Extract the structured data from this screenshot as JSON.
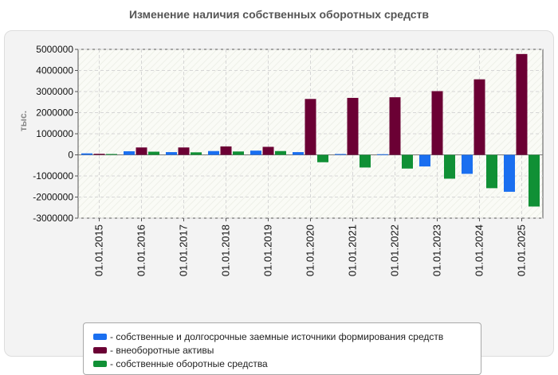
{
  "chart_data": {
    "type": "bar",
    "title": "Изменение наличия собственных оборотных средств",
    "xlabel": "",
    "ylabel": "тыс.",
    "ylim": [
      -3000000,
      5000000
    ],
    "yticks": [
      5000000,
      4000000,
      3000000,
      2000000,
      1000000,
      0,
      -1000000,
      -2000000,
      -3000000
    ],
    "ytick_labels": [
      "5000000",
      "4000000",
      "3000000",
      "2000000",
      "1000000",
      "0",
      "-1000000",
      "-2000000",
      "-3000000"
    ],
    "grid": true,
    "categories": [
      "01.01.2015",
      "01.01.2016",
      "01.01.2017",
      "01.01.2018",
      "01.01.2019",
      "01.01.2020",
      "01.01.2021",
      "01.01.2022",
      "01.01.2023",
      "01.01.2024",
      "01.01.2025"
    ],
    "series": [
      {
        "name": "- собственные и долгосрочные заемные источники формирования средств",
        "color": "#1a6ff0",
        "values": [
          70000,
          170000,
          130000,
          180000,
          200000,
          130000,
          40000,
          30000,
          -550000,
          -900000,
          -1750000
        ]
      },
      {
        "name": "- внеоборотные активы",
        "color": "#6b0034",
        "values": [
          50000,
          350000,
          350000,
          400000,
          380000,
          2650000,
          2700000,
          2730000,
          3020000,
          3580000,
          4780000
        ]
      },
      {
        "name": "- собственные оборотные средства",
        "color": "#109035",
        "values": [
          40000,
          150000,
          120000,
          160000,
          180000,
          -350000,
          -600000,
          -650000,
          -1130000,
          -1580000,
          -2450000
        ]
      }
    ],
    "legend_position": "bottom"
  }
}
